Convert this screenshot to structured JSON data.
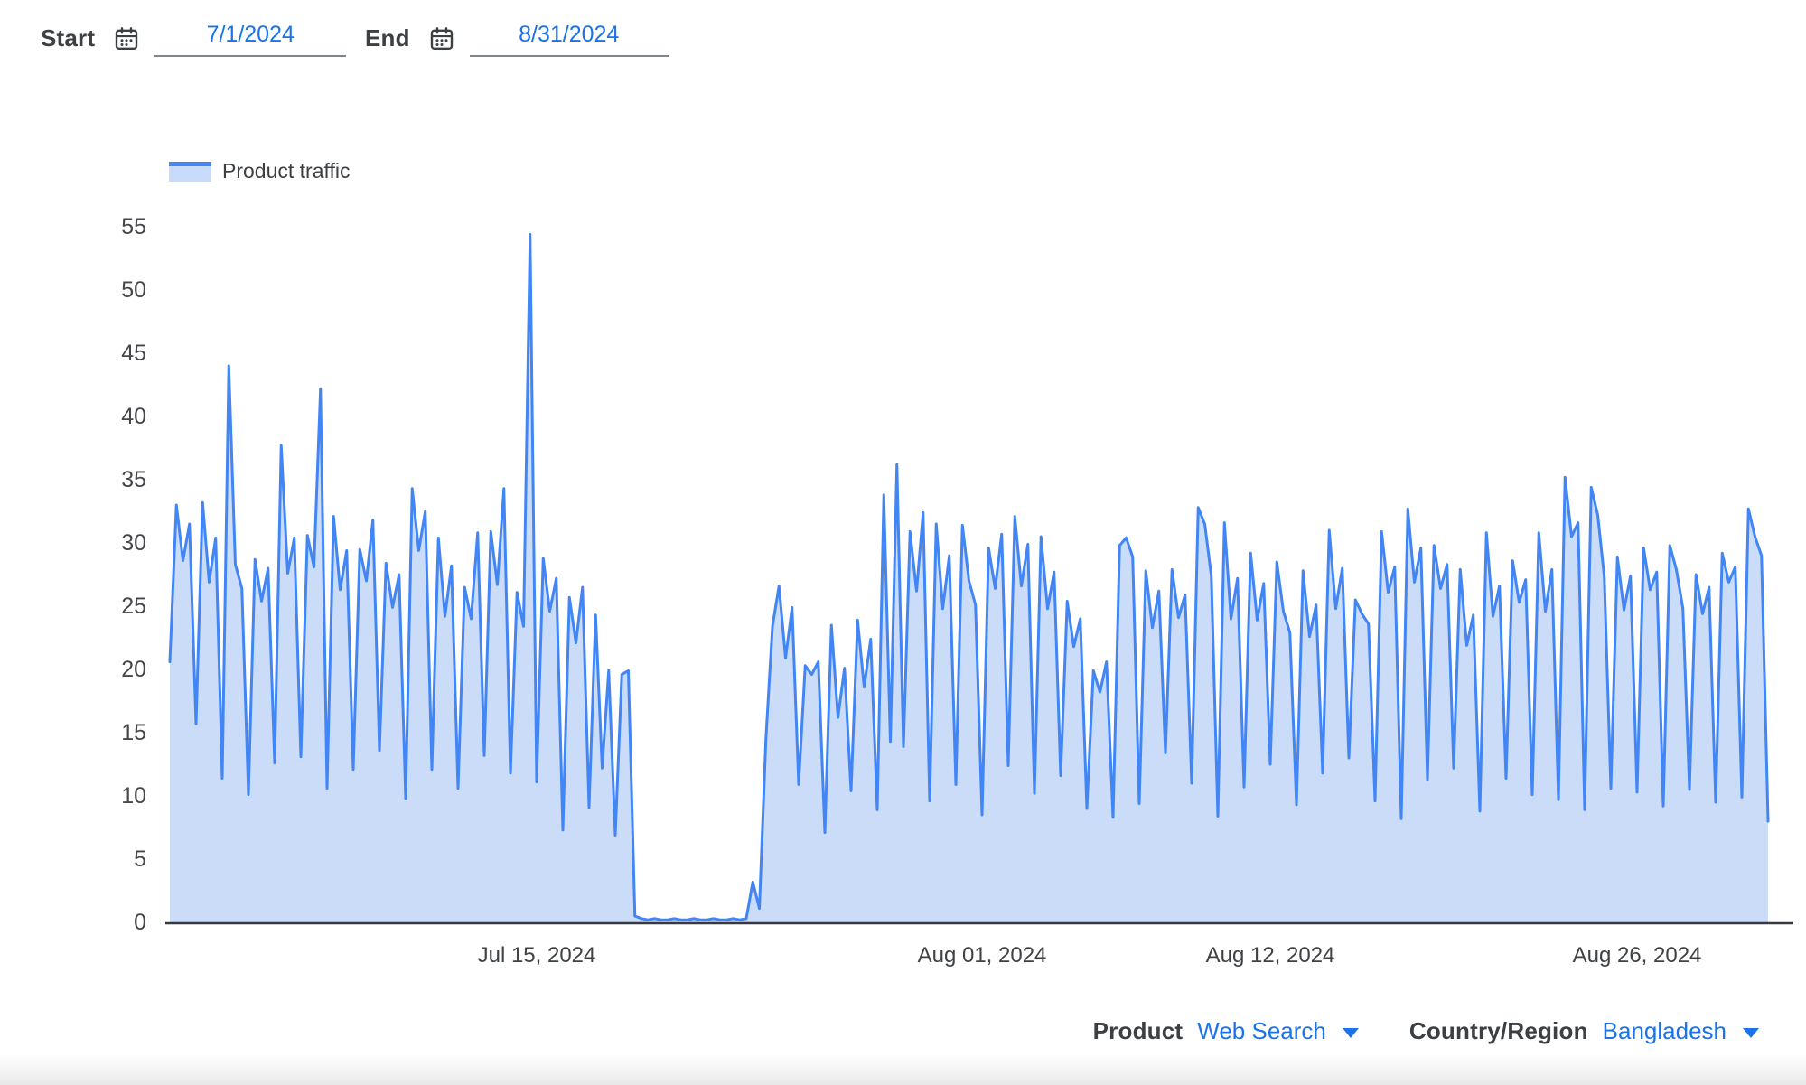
{
  "date_controls": {
    "start_label": "Start",
    "start_value": "7/1/2024",
    "end_label": "End",
    "end_value": "8/31/2024"
  },
  "legend": {
    "label": "Product traffic"
  },
  "bottom_controls": {
    "product_label": "Product",
    "product_value": "Web Search",
    "region_label": "Country/Region",
    "region_value": "Bangladesh"
  },
  "colors": {
    "line": "#4285f4",
    "fill": "#cbdcf9",
    "axis": "#37393d",
    "link_blue": "#1a73e8",
    "text_dark": "#3c4043"
  },
  "chart_data": {
    "type": "area",
    "title": "Product traffic",
    "x_start": "Jul 1, 2024",
    "x_end": "Aug 31, 2024",
    "samples_per_day": 4,
    "ylim": [
      0,
      57
    ],
    "grid": false,
    "legend_position": "top-left",
    "y_ticks": [
      0,
      5,
      10,
      15,
      20,
      25,
      30,
      35,
      40,
      45,
      50,
      55
    ],
    "x_ticks": [
      {
        "label": "Jul 15, 2024",
        "day": 14
      },
      {
        "label": "Aug 01, 2024",
        "day": 31
      },
      {
        "label": "Aug 12, 2024",
        "day": 42
      },
      {
        "label": "Aug 26, 2024",
        "day": 56
      }
    ],
    "values": [
      20.6,
      33.0,
      28.6,
      31.5,
      15.7,
      33.2,
      26.9,
      30.4,
      11.4,
      44.0,
      28.3,
      26.4,
      10.1,
      28.7,
      25.4,
      28.0,
      12.6,
      37.7,
      27.6,
      30.4,
      13.1,
      30.6,
      28.1,
      42.2,
      10.6,
      32.1,
      26.3,
      29.4,
      12.1,
      29.5,
      27.0,
      31.8,
      13.6,
      28.4,
      24.9,
      27.5,
      9.8,
      34.3,
      29.4,
      32.5,
      12.1,
      30.4,
      24.2,
      28.2,
      10.6,
      26.5,
      24.0,
      30.8,
      13.2,
      30.9,
      26.7,
      34.3,
      11.8,
      26.1,
      23.4,
      54.4,
      11.1,
      28.8,
      24.6,
      27.2,
      7.3,
      25.7,
      22.1,
      26.5,
      9.1,
      24.3,
      12.2,
      19.9,
      6.9,
      19.6,
      19.9,
      0.5,
      0.3,
      0.2,
      0.3,
      0.2,
      0.2,
      0.3,
      0.2,
      0.2,
      0.3,
      0.2,
      0.2,
      0.3,
      0.2,
      0.2,
      0.3,
      0.2,
      0.3,
      3.2,
      1.1,
      14.5,
      23.4,
      26.6,
      20.9,
      24.9,
      10.9,
      20.3,
      19.6,
      20.6,
      7.1,
      23.5,
      16.2,
      20.1,
      10.4,
      23.9,
      18.6,
      22.4,
      8.9,
      33.8,
      14.3,
      36.2,
      13.9,
      30.9,
      26.2,
      32.4,
      9.6,
      31.5,
      24.8,
      29.0,
      10.9,
      31.4,
      27.0,
      25.1,
      8.5,
      29.6,
      26.4,
      30.7,
      12.4,
      32.1,
      26.6,
      29.9,
      10.2,
      30.5,
      24.8,
      27.7,
      11.6,
      25.4,
      21.8,
      24.0,
      9.0,
      19.9,
      18.2,
      20.6,
      8.3,
      29.8,
      30.4,
      28.9,
      9.4,
      27.8,
      23.3,
      26.2,
      13.4,
      27.9,
      24.1,
      25.9,
      11.0,
      32.8,
      31.5,
      27.4,
      8.4,
      31.6,
      24.0,
      27.2,
      10.7,
      29.2,
      23.9,
      26.8,
      12.5,
      28.5,
      24.6,
      22.9,
      9.3,
      27.8,
      22.6,
      25.1,
      11.8,
      31.0,
      24.8,
      28.0,
      13.0,
      25.5,
      24.4,
      23.6,
      9.6,
      30.9,
      26.1,
      28.1,
      8.2,
      32.7,
      26.9,
      29.6,
      11.3,
      29.8,
      26.4,
      28.3,
      12.2,
      27.9,
      21.9,
      24.3,
      8.8,
      30.8,
      24.2,
      26.6,
      11.4,
      28.6,
      25.3,
      27.1,
      10.1,
      30.8,
      24.6,
      27.9,
      9.7,
      35.2,
      30.5,
      31.6,
      8.9,
      34.4,
      32.2,
      27.3,
      10.6,
      28.9,
      24.7,
      27.4,
      10.3,
      29.6,
      26.3,
      27.7,
      9.2,
      29.8,
      27.9,
      24.8,
      10.5,
      27.5,
      24.4,
      26.5,
      9.5,
      29.2,
      26.9,
      28.1,
      9.9,
      32.7,
      30.5,
      29.0,
      8.0
    ]
  }
}
